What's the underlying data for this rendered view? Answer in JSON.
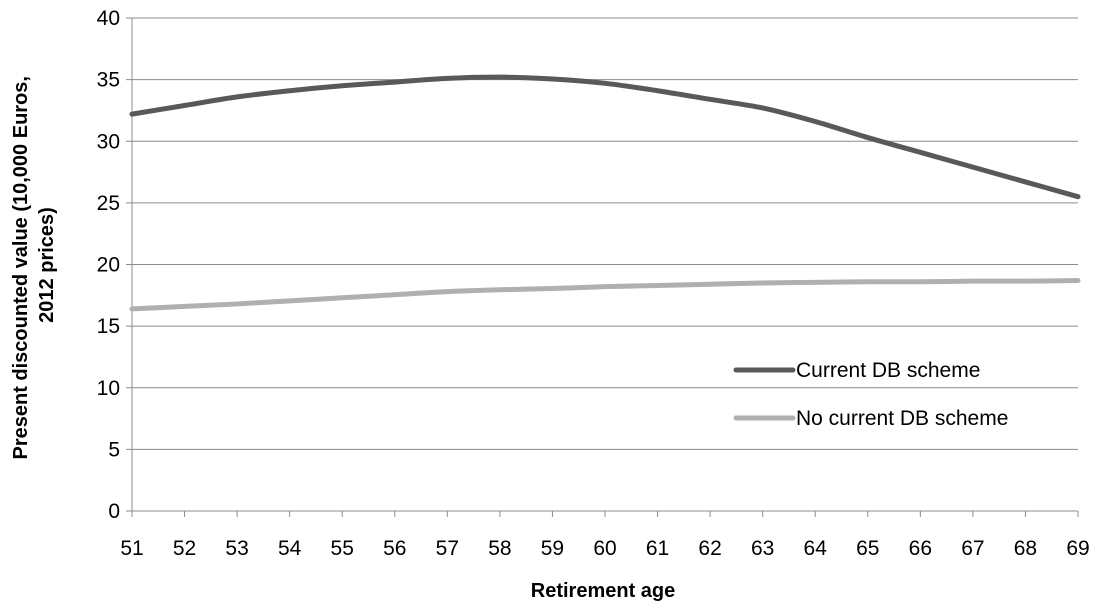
{
  "chart_data": {
    "type": "line",
    "title": "",
    "xlabel": "Retirement age",
    "ylabel_line1": "Present discounted value (10,000 Euros,",
    "ylabel_line2": "2012 prices)",
    "x": [
      51,
      52,
      53,
      54,
      55,
      56,
      57,
      58,
      59,
      60,
      61,
      62,
      63,
      64,
      65,
      66,
      67,
      68,
      69
    ],
    "ylim": [
      0,
      40
    ],
    "yticks": [
      0,
      5,
      10,
      15,
      20,
      25,
      30,
      35,
      40
    ],
    "grid": true,
    "legend_position": "right",
    "series": [
      {
        "name": "Current DB scheme",
        "color": "#595959",
        "values": [
          32.2,
          32.9,
          33.6,
          34.1,
          34.5,
          34.8,
          35.1,
          35.2,
          35.05,
          34.7,
          34.1,
          33.4,
          32.7,
          31.6,
          30.3,
          29.1,
          27.9,
          26.7,
          25.5
        ]
      },
      {
        "name": "No current DB scheme",
        "color": "#b0b0b0",
        "values": [
          16.4,
          16.6,
          16.8,
          17.05,
          17.3,
          17.55,
          17.8,
          17.95,
          18.05,
          18.2,
          18.3,
          18.4,
          18.5,
          18.55,
          18.6,
          18.6,
          18.65,
          18.65,
          18.7
        ]
      }
    ]
  }
}
